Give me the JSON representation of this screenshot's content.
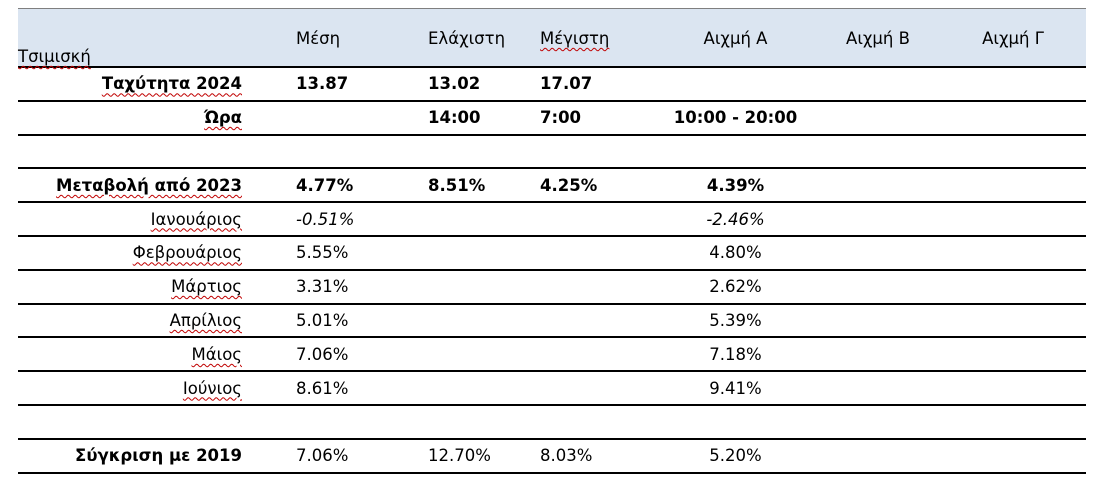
{
  "table": {
    "header": {
      "label": "Τσιμισκή",
      "columns": [
        "Μέση",
        "Ελάχιστη",
        "Μέγιστη",
        "Αιχμή Α",
        "Αιχμή Β",
        "Αιχμή Γ"
      ]
    },
    "speed_row": {
      "label": "Ταχύτητα 2024",
      "values": [
        "13.87",
        "13.02",
        "17.07",
        "",
        "",
        ""
      ]
    },
    "time_row": {
      "label": "Ώρα",
      "values": [
        "",
        "14:00",
        "7:00",
        "10:00 - 20:00",
        "",
        ""
      ]
    },
    "change_row": {
      "label": "Μεταβολή από 2023",
      "values": [
        "4.77%",
        "8.51%",
        "4.25%",
        "4.39%",
        "",
        ""
      ]
    },
    "months": [
      {
        "label": "Ιανουάριος",
        "mean": "-0.51%",
        "peak_a": "-2.46%",
        "italic": true
      },
      {
        "label": "Φεβρουάριος",
        "mean": "5.55%",
        "peak_a": "4.80%",
        "italic": false
      },
      {
        "label": "Μάρτιος",
        "mean": "3.31%",
        "peak_a": "2.62%",
        "italic": false
      },
      {
        "label": "Απρίλιος",
        "mean": "5.01%",
        "peak_a": "5.39%",
        "italic": false
      },
      {
        "label": "Μάιος",
        "mean": "7.06%",
        "peak_a": "7.18%",
        "italic": false
      },
      {
        "label": "Ιούνιος",
        "mean": "8.61%",
        "peak_a": "9.41%",
        "italic": false
      }
    ],
    "compare_row": {
      "label": "Σύγκριση με 2019",
      "values": [
        "7.06%",
        "12.70%",
        "8.03%",
        "5.20%",
        "",
        ""
      ]
    }
  },
  "colors": {
    "header_fill": "#dbe5f1",
    "rule": "#000000",
    "spellcheck": "#c00000"
  }
}
